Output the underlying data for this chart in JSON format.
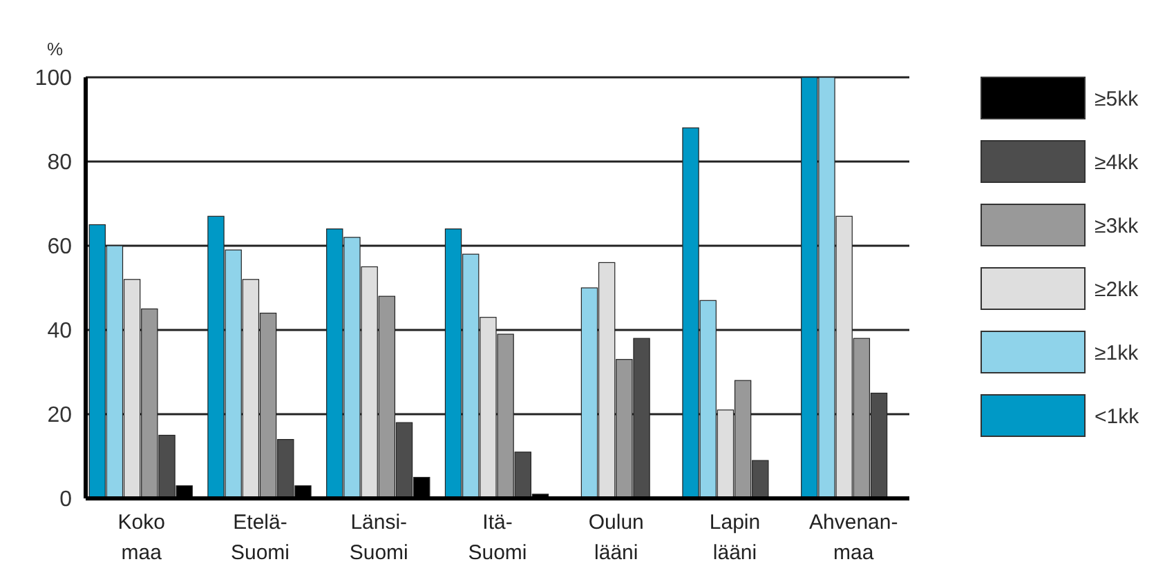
{
  "chart_data": {
    "type": "bar",
    "ylabel": "%",
    "categories": [
      "Koko\nmaa",
      "Etelä-\nSuomi",
      "Länsi-\nSuomi",
      "Itä-\nSuomi",
      "Oulun\nlääni",
      "Lapin\nlääni",
      "Ahvenan-\nmaa"
    ],
    "series": [
      {
        "name": "<1kk",
        "color": "#0099c6",
        "values": [
          65,
          67,
          64,
          64,
          0,
          88,
          100
        ]
      },
      {
        "name": "≥1kk",
        "color": "#8fd3ea",
        "values": [
          60,
          59,
          62,
          58,
          50,
          47,
          100
        ]
      },
      {
        "name": "≥2kk",
        "color": "#dedede",
        "values": [
          52,
          52,
          55,
          43,
          56,
          21,
          67
        ]
      },
      {
        "name": "≥3kk",
        "color": "#999999",
        "values": [
          45,
          44,
          48,
          39,
          33,
          28,
          38
        ]
      },
      {
        "name": "≥4kk",
        "color": "#4d4d4d",
        "values": [
          15,
          14,
          18,
          11,
          38,
          9,
          25
        ]
      },
      {
        "name": "≥5kk",
        "color": "#000000",
        "values": [
          3,
          3,
          5,
          1,
          0,
          0,
          0
        ]
      }
    ],
    "ylim": [
      0,
      100
    ],
    "yticks": [
      0,
      20,
      40,
      60,
      80,
      100
    ],
    "grid": "y",
    "legend": "right"
  }
}
